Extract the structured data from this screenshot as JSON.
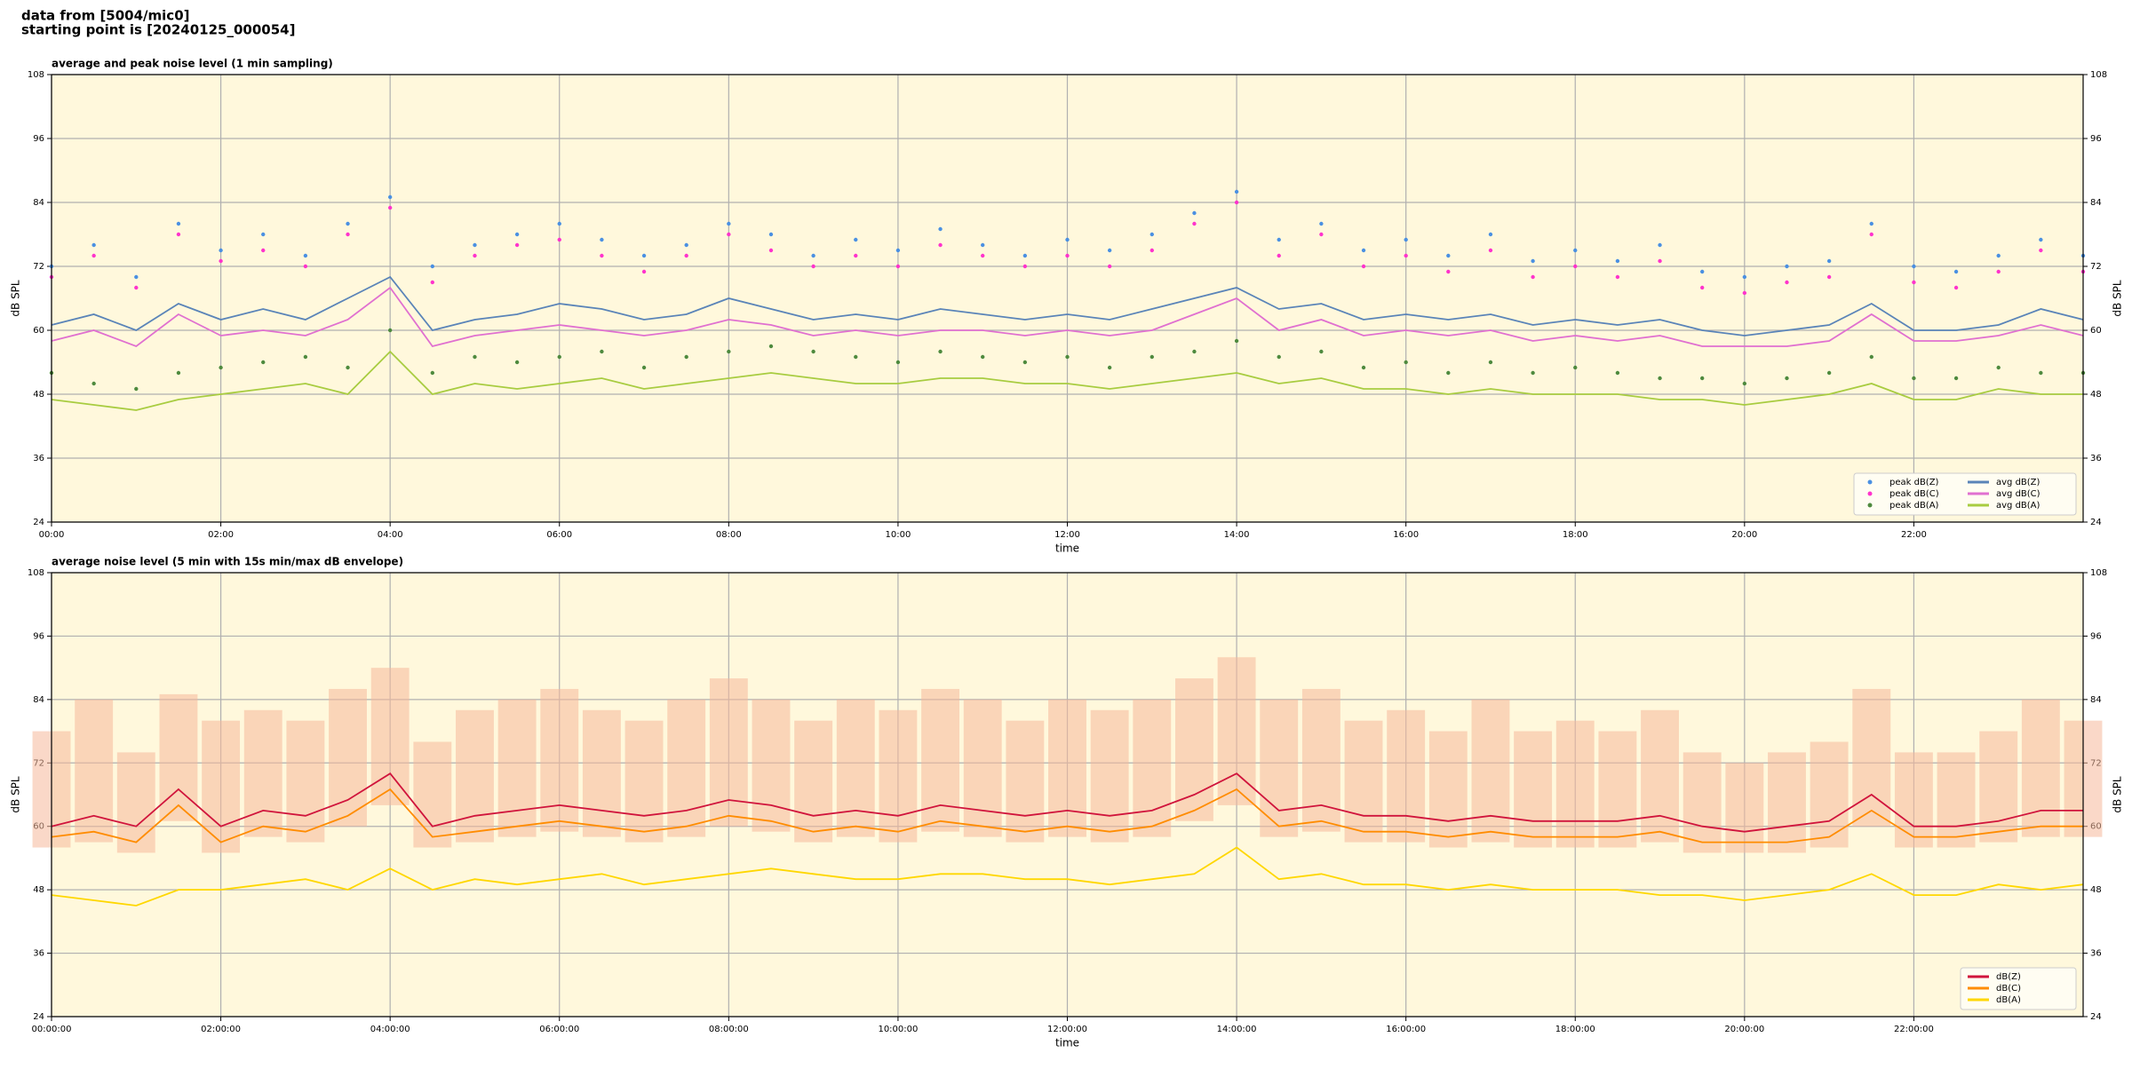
{
  "header": [
    "data from [5004/mic0]",
    "starting point is [20240125_000054]"
  ],
  "chart_data": [
    {
      "type": "line",
      "title": "average and peak noise level (1 min sampling)",
      "xlabel": "time",
      "ylabel": "dB SPL",
      "xlim": [
        0,
        24
      ],
      "ylim": [
        24,
        108
      ],
      "yticks": [
        24,
        36,
        48,
        60,
        72,
        84,
        96,
        108
      ],
      "grid": true,
      "legend": "lower right",
      "legend_columns": 2,
      "xticks": [
        {
          "value": 0,
          "label": "00:00"
        },
        {
          "value": 2,
          "label": "02:00"
        },
        {
          "value": 4,
          "label": "04:00"
        },
        {
          "value": 6,
          "label": "06:00"
        },
        {
          "value": 8,
          "label": "08:00"
        },
        {
          "value": 10,
          "label": "10:00"
        },
        {
          "value": 12,
          "label": "12:00"
        },
        {
          "value": 14,
          "label": "14:00"
        },
        {
          "value": 16,
          "label": "16:00"
        },
        {
          "value": 18,
          "label": "18:00"
        },
        {
          "value": 20,
          "label": "20:00"
        },
        {
          "value": 22,
          "label": "22:00"
        }
      ],
      "x": [
        0,
        0.5,
        1,
        1.5,
        2,
        2.5,
        3,
        3.5,
        4,
        4.5,
        5,
        5.5,
        6,
        6.5,
        7,
        7.5,
        8,
        8.5,
        9,
        9.5,
        10,
        10.5,
        11,
        11.5,
        12,
        12.5,
        13,
        13.5,
        14,
        14.5,
        15,
        15.5,
        16,
        16.5,
        17,
        17.5,
        18,
        18.5,
        19,
        19.5,
        20,
        20.5,
        21,
        21.5,
        22,
        22.5,
        23,
        23.5,
        24
      ],
      "series": [
        {
          "name": "peak dB(Z)",
          "type": "scatter",
          "color": "#4a90e2",
          "values": [
            72,
            76,
            70,
            80,
            75,
            78,
            74,
            80,
            85,
            72,
            76,
            78,
            80,
            77,
            74,
            76,
            80,
            78,
            74,
            77,
            75,
            79,
            76,
            74,
            77,
            75,
            78,
            82,
            86,
            77,
            80,
            75,
            77,
            74,
            78,
            73,
            75,
            73,
            76,
            71,
            70,
            72,
            73,
            80,
            72,
            71,
            74,
            77,
            74
          ]
        },
        {
          "name": "peak dB(C)",
          "type": "scatter",
          "color": "#ff33cc",
          "values": [
            70,
            74,
            68,
            78,
            73,
            75,
            72,
            78,
            83,
            69,
            74,
            76,
            77,
            74,
            71,
            74,
            78,
            75,
            72,
            74,
            72,
            76,
            74,
            72,
            74,
            72,
            75,
            80,
            84,
            74,
            78,
            72,
            74,
            71,
            75,
            70,
            72,
            70,
            73,
            68,
            67,
            69,
            70,
            78,
            69,
            68,
            71,
            75,
            71
          ]
        },
        {
          "name": "peak dB(A)",
          "type": "scatter",
          "color": "#4e8a3e",
          "values": [
            52,
            50,
            49,
            52,
            53,
            54,
            55,
            53,
            60,
            52,
            55,
            54,
            55,
            56,
            53,
            55,
            56,
            57,
            56,
            55,
            54,
            56,
            55,
            54,
            55,
            53,
            55,
            56,
            58,
            55,
            56,
            53,
            54,
            52,
            54,
            52,
            53,
            52,
            51,
            51,
            50,
            51,
            52,
            55,
            51,
            51,
            53,
            52,
            52
          ]
        },
        {
          "name": "avg dB(Z)",
          "type": "line",
          "color": "#5a84b8",
          "values": [
            61,
            63,
            60,
            65,
            62,
            64,
            62,
            66,
            70,
            60,
            62,
            63,
            65,
            64,
            62,
            63,
            66,
            64,
            62,
            63,
            62,
            64,
            63,
            62,
            63,
            62,
            64,
            66,
            68,
            64,
            65,
            62,
            63,
            62,
            63,
            61,
            62,
            61,
            62,
            60,
            59,
            60,
            61,
            65,
            60,
            60,
            61,
            64,
            62
          ]
        },
        {
          "name": "avg dB(C)",
          "type": "line",
          "color": "#e070d0",
          "values": [
            58,
            60,
            57,
            63,
            59,
            60,
            59,
            62,
            68,
            57,
            59,
            60,
            61,
            60,
            59,
            60,
            62,
            61,
            59,
            60,
            59,
            60,
            60,
            59,
            60,
            59,
            60,
            63,
            66,
            60,
            62,
            59,
            60,
            59,
            60,
            58,
            59,
            58,
            59,
            57,
            57,
            57,
            58,
            63,
            58,
            58,
            59,
            61,
            59
          ]
        },
        {
          "name": "avg dB(A)",
          "type": "line",
          "color": "#a8cc40",
          "values": [
            47,
            46,
            45,
            47,
            48,
            49,
            50,
            48,
            56,
            48,
            50,
            49,
            50,
            51,
            49,
            50,
            51,
            52,
            51,
            50,
            50,
            51,
            51,
            50,
            50,
            49,
            50,
            51,
            52,
            50,
            51,
            49,
            49,
            48,
            49,
            48,
            48,
            48,
            47,
            47,
            46,
            47,
            48,
            50,
            47,
            47,
            49,
            48,
            48
          ]
        }
      ]
    },
    {
      "type": "line",
      "title": "average noise level (5 min with 15s min/max dB envelope)",
      "xlabel": "time",
      "ylabel": "dB SPL",
      "xlim": [
        0,
        24
      ],
      "ylim": [
        24,
        108
      ],
      "yticks": [
        24,
        36,
        48,
        60,
        72,
        84,
        96,
        108
      ],
      "grid": true,
      "legend": "lower right",
      "legend_columns": 1,
      "xticks": [
        {
          "value": 0,
          "label": "00:00:00"
        },
        {
          "value": 2,
          "label": "02:00:00"
        },
        {
          "value": 4,
          "label": "04:00:00"
        },
        {
          "value": 6,
          "label": "06:00:00"
        },
        {
          "value": 8,
          "label": "08:00:00"
        },
        {
          "value": 10,
          "label": "10:00:00"
        },
        {
          "value": 12,
          "label": "12:00:00"
        },
        {
          "value": 14,
          "label": "14:00:00"
        },
        {
          "value": 16,
          "label": "16:00:00"
        },
        {
          "value": 18,
          "label": "18:00:00"
        },
        {
          "value": 20,
          "label": "20:00:00"
        },
        {
          "value": 22,
          "label": "22:00:00"
        }
      ],
      "x": [
        0,
        0.5,
        1,
        1.5,
        2,
        2.5,
        3,
        3.5,
        4,
        4.5,
        5,
        5.5,
        6,
        6.5,
        7,
        7.5,
        8,
        8.5,
        9,
        9.5,
        10,
        10.5,
        11,
        11.5,
        12,
        12.5,
        13,
        13.5,
        14,
        14.5,
        15,
        15.5,
        16,
        16.5,
        17,
        17.5,
        18,
        18.5,
        19,
        19.5,
        20,
        20.5,
        21,
        21.5,
        22,
        22.5,
        23,
        23.5,
        24
      ],
      "envelope": {
        "color": "#f6b89a",
        "low": [
          56,
          57,
          55,
          61,
          55,
          58,
          57,
          60,
          64,
          56,
          57,
          58,
          59,
          58,
          57,
          58,
          60,
          59,
          57,
          58,
          57,
          59,
          58,
          57,
          58,
          57,
          58,
          61,
          64,
          58,
          59,
          57,
          57,
          56,
          57,
          56,
          56,
          56,
          57,
          55,
          55,
          55,
          56,
          60,
          56,
          56,
          57,
          58,
          58
        ],
        "high": [
          78,
          84,
          74,
          85,
          80,
          82,
          80,
          86,
          90,
          76,
          82,
          84,
          86,
          82,
          80,
          84,
          88,
          84,
          80,
          84,
          82,
          86,
          84,
          80,
          84,
          82,
          84,
          88,
          92,
          84,
          86,
          80,
          82,
          78,
          84,
          78,
          80,
          78,
          82,
          74,
          72,
          74,
          76,
          86,
          74,
          74,
          78,
          84,
          80
        ]
      },
      "series": [
        {
          "name": "dB(Z)",
          "type": "line",
          "color": "#d0143c",
          "values": [
            60,
            62,
            60,
            67,
            60,
            63,
            62,
            65,
            70,
            60,
            62,
            63,
            64,
            63,
            62,
            63,
            65,
            64,
            62,
            63,
            62,
            64,
            63,
            62,
            63,
            62,
            63,
            66,
            70,
            63,
            64,
            62,
            62,
            61,
            62,
            61,
            61,
            61,
            62,
            60,
            59,
            60,
            61,
            66,
            60,
            60,
            61,
            63,
            63
          ]
        },
        {
          "name": "dB(C)",
          "type": "line",
          "color": "#ff8c00",
          "values": [
            58,
            59,
            57,
            64,
            57,
            60,
            59,
            62,
            67,
            58,
            59,
            60,
            61,
            60,
            59,
            60,
            62,
            61,
            59,
            60,
            59,
            61,
            60,
            59,
            60,
            59,
            60,
            63,
            67,
            60,
            61,
            59,
            59,
            58,
            59,
            58,
            58,
            58,
            59,
            57,
            57,
            57,
            58,
            63,
            58,
            58,
            59,
            60,
            60
          ]
        },
        {
          "name": "dB(A)",
          "type": "line",
          "color": "#ffd700",
          "values": [
            47,
            46,
            45,
            48,
            48,
            49,
            50,
            48,
            52,
            48,
            50,
            49,
            50,
            51,
            49,
            50,
            51,
            52,
            51,
            50,
            50,
            51,
            51,
            50,
            50,
            49,
            50,
            51,
            56,
            50,
            51,
            49,
            49,
            48,
            49,
            48,
            48,
            48,
            47,
            47,
            46,
            47,
            48,
            51,
            47,
            47,
            49,
            48,
            49
          ]
        }
      ]
    }
  ]
}
